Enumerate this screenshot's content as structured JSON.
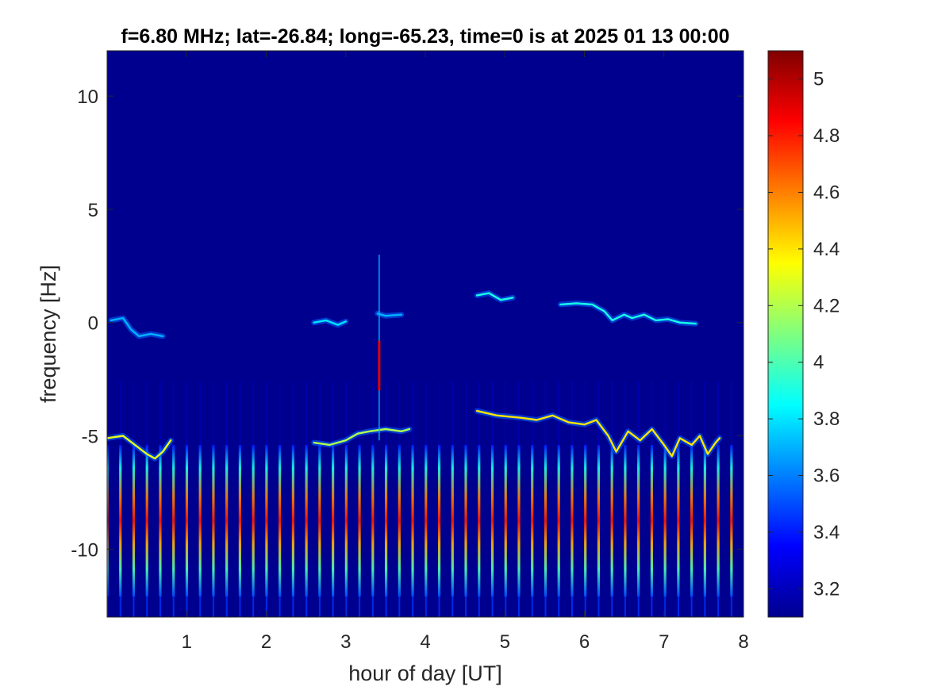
{
  "chart_data": {
    "type": "heatmap",
    "title": "f=6.80 MHz;  lat=-26.84; long=-65.23, time=0 is at 2025 01 13 00:00",
    "xlabel": "hour of day [UT]",
    "ylabel": "frequency [Hz]",
    "xlim": [
      0,
      8
    ],
    "ylim": [
      -13,
      12
    ],
    "xticks": [
      1,
      2,
      3,
      4,
      5,
      6,
      7,
      8
    ],
    "yticks": [
      -10,
      -5,
      0,
      5,
      10
    ],
    "colormap": "jet",
    "colorbar": {
      "range": [
        3.1,
        5.1
      ],
      "ticks": [
        3.2,
        3.4,
        3.6,
        3.8,
        4,
        4.2,
        4.4,
        4.6,
        4.8,
        5
      ]
    },
    "background_color": "#00008f",
    "features": {
      "periodic_stripes": {
        "first_hour": 0.0,
        "spacing_hours": 0.167,
        "strong_band": [
          -12.1,
          -5.4
        ],
        "weak_band": [
          -13,
          -12.1
        ]
      },
      "traces": [
        {
          "points": [
            [
              0.0,
              -5.1
            ],
            [
              0.2,
              -5.0
            ],
            [
              0.35,
              -5.4
            ],
            [
              0.5,
              -5.8
            ],
            [
              0.6,
              -6.0
            ],
            [
              0.7,
              -5.7
            ],
            [
              0.8,
              -5.2
            ]
          ],
          "level": 4.3
        },
        {
          "points": [
            [
              0.05,
              0.1
            ],
            [
              0.2,
              0.2
            ],
            [
              0.3,
              -0.3
            ],
            [
              0.4,
              -0.6
            ],
            [
              0.55,
              -0.5
            ],
            [
              0.7,
              -0.6
            ]
          ],
          "level": 3.7
        },
        {
          "points": [
            [
              2.6,
              0.0
            ],
            [
              2.75,
              0.1
            ],
            [
              2.9,
              -0.1
            ],
            [
              3.0,
              0.05
            ]
          ],
          "level": 3.8
        },
        {
          "points": [
            [
              3.4,
              0.4
            ],
            [
              3.5,
              0.3
            ],
            [
              3.7,
              0.35
            ]
          ],
          "level": 3.7
        },
        {
          "points": [
            [
              2.6,
              -5.3
            ],
            [
              2.8,
              -5.4
            ],
            [
              3.0,
              -5.2
            ],
            [
              3.15,
              -4.9
            ],
            [
              3.3,
              -4.8
            ],
            [
              3.5,
              -4.7
            ],
            [
              3.7,
              -4.8
            ],
            [
              3.8,
              -4.7
            ]
          ],
          "level": 4.2
        },
        {
          "points": [
            [
              4.65,
              1.2
            ],
            [
              4.8,
              1.3
            ],
            [
              4.95,
              1.0
            ],
            [
              5.1,
              1.1
            ]
          ],
          "level": 3.9
        },
        {
          "points": [
            [
              5.7,
              0.8
            ],
            [
              5.9,
              0.85
            ],
            [
              6.1,
              0.8
            ],
            [
              6.25,
              0.5
            ],
            [
              6.35,
              0.1
            ],
            [
              6.5,
              0.35
            ],
            [
              6.6,
              0.2
            ],
            [
              6.75,
              0.35
            ],
            [
              6.9,
              0.1
            ],
            [
              7.05,
              0.15
            ],
            [
              7.2,
              0.0
            ],
            [
              7.4,
              -0.05
            ]
          ],
          "level": 3.9
        },
        {
          "points": [
            [
              4.65,
              -3.9
            ],
            [
              4.9,
              -4.1
            ],
            [
              5.2,
              -4.2
            ],
            [
              5.4,
              -4.3
            ],
            [
              5.6,
              -4.1
            ],
            [
              5.8,
              -4.4
            ],
            [
              6.0,
              -4.5
            ],
            [
              6.15,
              -4.3
            ],
            [
              6.3,
              -5.0
            ],
            [
              6.4,
              -5.7
            ],
            [
              6.55,
              -4.8
            ],
            [
              6.7,
              -5.2
            ],
            [
              6.85,
              -4.7
            ],
            [
              7.0,
              -5.4
            ],
            [
              7.1,
              -5.9
            ],
            [
              7.2,
              -5.1
            ],
            [
              7.35,
              -5.4
            ],
            [
              7.45,
              -5.0
            ],
            [
              7.55,
              -5.8
            ],
            [
              7.65,
              -5.3
            ],
            [
              7.7,
              -5.1
            ]
          ],
          "level": 4.4
        }
      ],
      "vertical_spike": {
        "hour": 3.42,
        "from_hz": -3.0,
        "to_hz": -0.8,
        "level": 4.9
      }
    }
  }
}
